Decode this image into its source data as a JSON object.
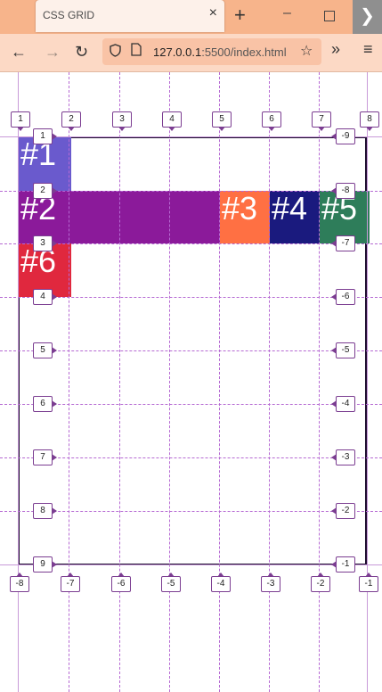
{
  "browser": {
    "tab_title": "CSS GRID",
    "tab_close_glyph": "×",
    "new_tab_glyph": "+",
    "minimize_glyph": "–",
    "close_window_glyph": "❯",
    "back_glyph": "←",
    "forward_glyph": "→",
    "reload_glyph": "↻",
    "url_host": "127.0.0.1",
    "url_rest": ":5500/index.html",
    "bookmark_glyph": "☆",
    "more_tools_glyph": "»",
    "menu_glyph": "≡",
    "colors": {
      "tabbar": "#f7b48b",
      "navbar": "#fcd9c5",
      "urlbar": "#f9c3a6"
    }
  },
  "grid": {
    "column_labels_top": [
      "1",
      "2",
      "3",
      "4",
      "5",
      "6",
      "7",
      "8"
    ],
    "column_labels_bottom": [
      "-8",
      "-7",
      "-6",
      "-5",
      "-4",
      "-3",
      "-2",
      "-1"
    ],
    "row_labels_left": [
      "1",
      "2",
      "3",
      "4",
      "5",
      "6",
      "7",
      "8",
      "9"
    ],
    "row_labels_right": [
      "-9",
      "-8",
      "-7",
      "-6",
      "-5",
      "-4",
      "-3",
      "-2",
      "-1"
    ],
    "overlay_color": "#b66ad3",
    "items": [
      {
        "label": "#1",
        "color": "#6a5acd"
      },
      {
        "label": "#2",
        "color": "#8b1a9a"
      },
      {
        "label": "#3",
        "color": "#ff7043"
      },
      {
        "label": "#4",
        "color": "#1a1a7e"
      },
      {
        "label": "#5",
        "color": "#2e7d5a"
      },
      {
        "label": "#6",
        "color": "#e0283e"
      }
    ]
  }
}
